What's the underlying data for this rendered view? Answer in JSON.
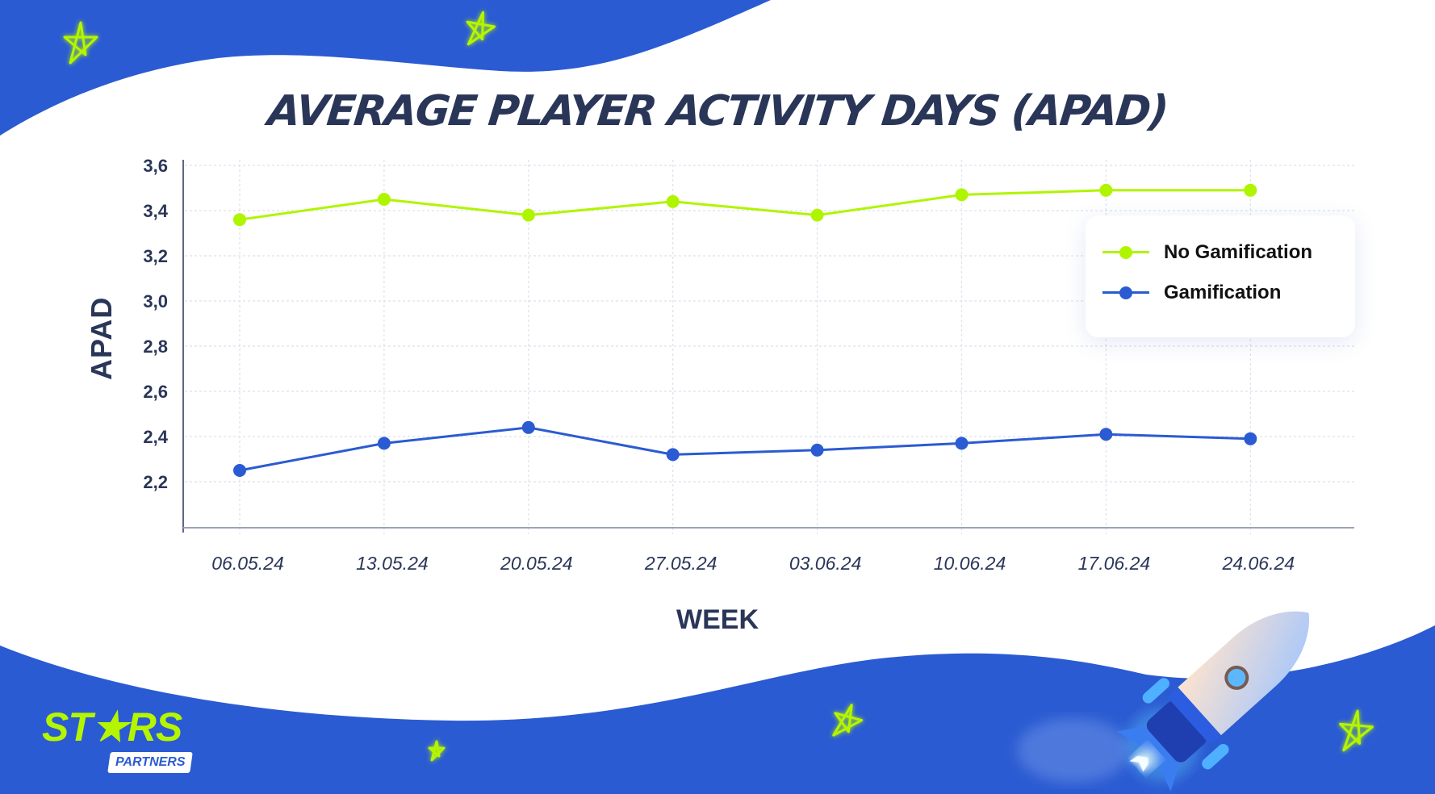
{
  "header": {
    "title": "AVERAGE PLAYER ACTIVITY DAYS (APAD)"
  },
  "axes": {
    "ylabel": "APAD",
    "xlabel": "WEEK",
    "yticks": [
      "3,6",
      "3,4",
      "3,2",
      "3,0",
      "2,8",
      "2,6",
      "2,4",
      "2,2"
    ],
    "xticks": [
      "06.05.24",
      "13.05.24",
      "20.05.24",
      "27.05.24",
      "03.06.24",
      "10.06.24",
      "17.06.24",
      "24.06.24"
    ]
  },
  "legend": {
    "items": [
      {
        "label": "No Gamification",
        "color": "#b0f500"
      },
      {
        "label": "Gamification",
        "color": "#2b5bd2"
      }
    ]
  },
  "branding": {
    "logo_text": "ST★RS",
    "logo_tag": "PARTNERS",
    "brand_blue": "#2b5bd2",
    "brand_lime": "#b5f500",
    "title_color": "#2a3658"
  },
  "chart_data": {
    "type": "line",
    "title": "AVERAGE PLAYER ACTIVITY DAYS (APAD)",
    "xlabel": "WEEK",
    "ylabel": "APAD",
    "categories": [
      "06.05.24",
      "13.05.24",
      "20.05.24",
      "27.05.24",
      "03.06.24",
      "10.06.24",
      "17.06.24",
      "24.06.24"
    ],
    "series": [
      {
        "name": "No Gamification",
        "color": "#b0f500",
        "values": [
          3.36,
          3.45,
          3.38,
          3.44,
          3.38,
          3.47,
          3.49,
          3.49
        ]
      },
      {
        "name": "Gamification",
        "color": "#2b5bd2",
        "values": [
          2.25,
          2.37,
          2.44,
          2.32,
          2.34,
          2.37,
          2.41,
          2.39
        ]
      }
    ],
    "ylim": [
      2.05,
      3.65
    ],
    "yticks": [
      2.2,
      2.4,
      2.6,
      2.8,
      3.0,
      3.2,
      3.4,
      3.6
    ],
    "grid": true,
    "legend_position": "upper right"
  }
}
